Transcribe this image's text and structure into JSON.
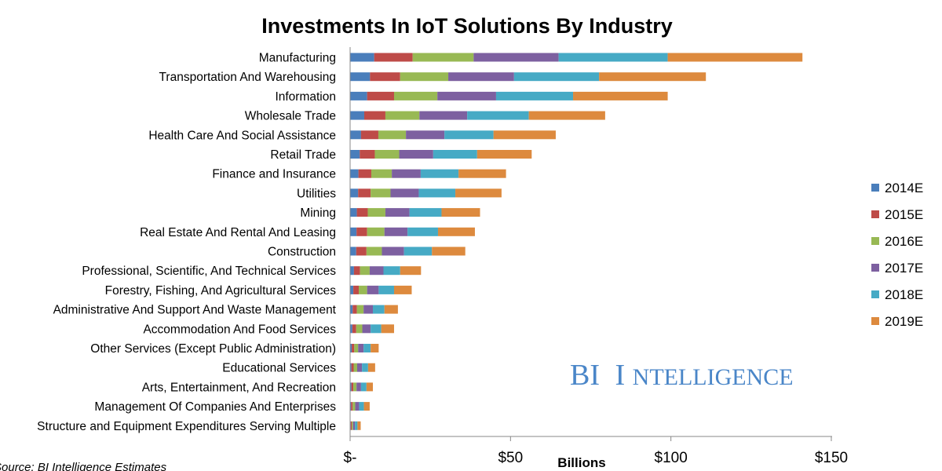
{
  "chart_data": {
    "type": "bar",
    "orientation": "horizontal",
    "stacked": true,
    "title": "Investments In IoT Solutions By Industry",
    "xlabel": "Billions",
    "xlim": [
      0,
      150
    ],
    "xticks": [
      0,
      50,
      100,
      150
    ],
    "xtick_labels": [
      "$-",
      "$50",
      "$100",
      "$150"
    ],
    "grid": false,
    "legend_position": "right",
    "categories": [
      "Manufacturing",
      "Transportation And Warehousing",
      "Information",
      "Wholesale Trade",
      "Health Care And Social Assistance",
      "Retail Trade",
      "Finance and Insurance",
      "Utilities",
      "Mining",
      "Real Estate And Rental And Leasing",
      "Construction",
      "Professional, Scientific, And Technical Services",
      "Forestry, Fishing, And Agricultural Services",
      "Administrative And Support And Waste Management",
      "Accommodation And Food Services",
      "Other Services (Except Public Administration)",
      "Educational Services",
      "Arts, Entertainment, And Recreation",
      "Management Of Companies And Enterprises",
      "Structure and Equipment Expenditures Serving Multiple"
    ],
    "series": [
      {
        "name": "2014E",
        "color": "#4a7ebb",
        "values": [
          7.5,
          6.2,
          5.3,
          4.4,
          3.4,
          3.0,
          2.6,
          2.5,
          2.1,
          2.0,
          1.9,
          1.2,
          1.0,
          0.8,
          0.7,
          0.5,
          0.4,
          0.4,
          0.3,
          0.2
        ]
      },
      {
        "name": "2015E",
        "color": "#be4b48",
        "values": [
          12.0,
          9.4,
          8.4,
          6.6,
          5.4,
          4.7,
          4.0,
          3.9,
          3.4,
          3.3,
          3.2,
          1.9,
          1.7,
          1.3,
          1.2,
          0.8,
          0.7,
          0.6,
          0.5,
          0.3
        ]
      },
      {
        "name": "2016E",
        "color": "#98b954",
        "values": [
          19.0,
          15.0,
          13.5,
          10.6,
          8.6,
          7.6,
          6.4,
          6.2,
          5.5,
          5.4,
          4.8,
          3.0,
          2.6,
          2.1,
          1.9,
          1.2,
          1.1,
          1.0,
          0.8,
          0.4
        ]
      },
      {
        "name": "2017E",
        "color": "#7d60a0",
        "values": [
          26.5,
          20.5,
          18.3,
          14.9,
          12.0,
          10.6,
          9.0,
          8.8,
          7.5,
          7.2,
          6.9,
          4.3,
          3.6,
          2.9,
          2.6,
          1.7,
          1.5,
          1.4,
          1.2,
          0.6
        ]
      },
      {
        "name": "2018E",
        "color": "#46aac5",
        "values": [
          34.0,
          26.5,
          24.0,
          19.2,
          15.3,
          13.7,
          11.8,
          11.4,
          10.0,
          9.5,
          8.7,
          5.2,
          4.8,
          3.6,
          3.3,
          2.2,
          1.9,
          1.7,
          1.5,
          0.8
        ]
      },
      {
        "name": "2019E",
        "color": "#dd8a3e",
        "values": [
          42.0,
          33.3,
          29.5,
          23.8,
          19.4,
          17.0,
          14.8,
          14.4,
          12.0,
          11.5,
          10.4,
          6.5,
          5.5,
          4.2,
          4.0,
          2.5,
          2.2,
          2.0,
          1.8,
          1.0
        ]
      }
    ]
  },
  "source_note": "Source: BI Intelligence Estimates",
  "brand": {
    "initials": "BI",
    "first_letter": "I",
    "rest": "NTELLIGENCE"
  }
}
